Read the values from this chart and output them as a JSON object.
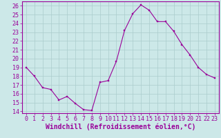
{
  "x": [
    0,
    1,
    2,
    3,
    4,
    5,
    6,
    7,
    8,
    9,
    10,
    11,
    12,
    13,
    14,
    15,
    16,
    17,
    18,
    19,
    20,
    21,
    22,
    23
  ],
  "y": [
    19,
    18,
    16.7,
    16.5,
    15.3,
    15.7,
    14.9,
    14.2,
    14.1,
    17.3,
    17.5,
    19.7,
    23.2,
    25.1,
    26.1,
    25.5,
    24.2,
    24.2,
    23.1,
    21.6,
    20.4,
    19.0,
    18.2,
    17.8
  ],
  "line_color": "#990099",
  "marker_color": "#990099",
  "bg_color": "#cce8e8",
  "grid_color": "#aacccc",
  "xlabel": "Windchill (Refroidissement éolien,°C)",
  "ylim": [
    13.8,
    26.5
  ],
  "xlim": [
    -0.5,
    23.5
  ],
  "yticks": [
    14,
    15,
    16,
    17,
    18,
    19,
    20,
    21,
    22,
    23,
    24,
    25,
    26
  ],
  "xticks": [
    0,
    1,
    2,
    3,
    4,
    5,
    6,
    7,
    8,
    9,
    10,
    11,
    12,
    13,
    14,
    15,
    16,
    17,
    18,
    19,
    20,
    21,
    22,
    23
  ],
  "title_color": "#990099",
  "axis_color": "#990099",
  "tick_color": "#990099",
  "spine_color": "#990099",
  "font_size": 6.0,
  "xlabel_fontsize": 7.0
}
